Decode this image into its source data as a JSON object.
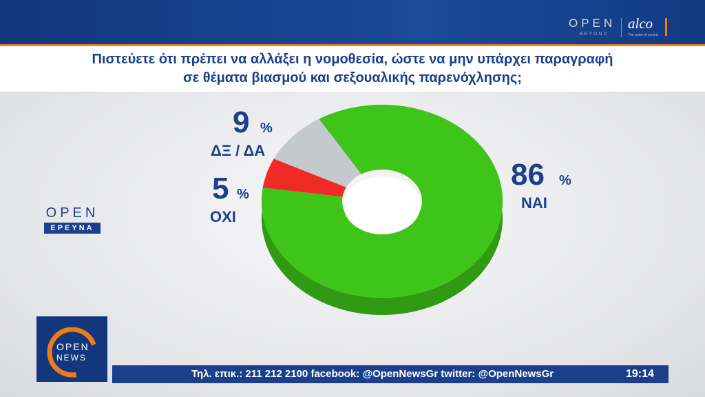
{
  "header": {
    "brand_open": "OPEN",
    "brand_beyond": "BEYOND",
    "brand_alco": "alco",
    "brand_alco_tag": "The pulse of society"
  },
  "question": {
    "line1": "Πιστεύετε ότι πρέπει να αλλάξει η νομοθεσία, ώστε να μην υπάρχει παραγραφή",
    "line2": "σε θέματα βιασμού και σεξουαλικής παρενόχλησης;"
  },
  "colors": {
    "nai": "#3fc41a",
    "nai_dark": "#2f9a12",
    "oxi": "#ee2b24",
    "oxi_dark": "#b51d18",
    "dk": "#c3c9cc",
    "dk_dark": "#9da3a6",
    "text": "#1b3f8b"
  },
  "chart_data": {
    "type": "pie",
    "style": "3d-donut",
    "title": "",
    "slices": [
      {
        "label": "ΝΑΙ",
        "value": 86,
        "unit": "%"
      },
      {
        "label": "ΟΧΙ",
        "value": 5,
        "unit": "%"
      },
      {
        "label": "ΔΞ / ΔΑ",
        "value": 9,
        "unit": "%"
      }
    ]
  },
  "logo_erevna": {
    "word": "OPEN",
    "sub": "ΕΡΕΥΝΑ"
  },
  "news_logo": {
    "line1": "OPEN",
    "line2": "NEWS"
  },
  "ticker": {
    "text": "Τηλ. επικ.: 211 212 2100 facebook: @OpenNewsGr twitter: @OpenNewsGr",
    "time": "19:14"
  }
}
